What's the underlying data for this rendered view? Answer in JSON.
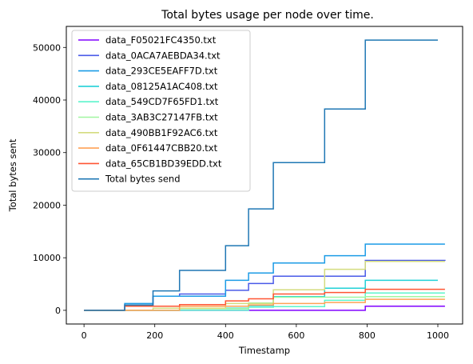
{
  "chart_data": {
    "type": "line",
    "title": "Total bytes usage per node over time.",
    "xlabel": "Timestamp",
    "ylabel": "Total bytes sent",
    "xlim": [
      -50,
      1070
    ],
    "ylim": [
      -2600,
      54000
    ],
    "xticks": [
      0,
      200,
      400,
      600,
      800,
      1000
    ],
    "yticks": [
      0,
      10000,
      20000,
      30000,
      40000,
      50000
    ],
    "grid": false,
    "legend_position": "top-left",
    "series": [
      {
        "name": "data_F05021FC4350.txt",
        "color": "#8000ff",
        "steps": [
          [
            0,
            0
          ],
          [
            795,
            800
          ],
          [
            1020,
            800
          ]
        ]
      },
      {
        "name": "data_0ACA7AEBDA34.txt",
        "color": "#4a5ae8",
        "steps": [
          [
            0,
            0
          ],
          [
            115,
            1000
          ],
          [
            195,
            2700
          ],
          [
            270,
            3100
          ],
          [
            400,
            3800
          ],
          [
            465,
            5100
          ],
          [
            535,
            6500
          ],
          [
            680,
            6500
          ],
          [
            795,
            9500
          ],
          [
            1020,
            9400
          ]
        ]
      },
      {
        "name": "data_293CE5EAFF7D.txt",
        "color": "#1c9ce6",
        "steps": [
          [
            0,
            0
          ],
          [
            115,
            1300
          ],
          [
            195,
            2700
          ],
          [
            270,
            2700
          ],
          [
            400,
            5700
          ],
          [
            465,
            7100
          ],
          [
            535,
            9000
          ],
          [
            680,
            10400
          ],
          [
            795,
            12600
          ],
          [
            1020,
            12600
          ]
        ]
      },
      {
        "name": "data_08125A1AC408.txt",
        "color": "#21d1d7",
        "steps": [
          [
            0,
            0
          ],
          [
            270,
            400
          ],
          [
            465,
            900
          ],
          [
            535,
            2600
          ],
          [
            680,
            4200
          ],
          [
            795,
            5700
          ],
          [
            1000,
            5700
          ]
        ]
      },
      {
        "name": "data_549CD7F65FD1.txt",
        "color": "#5cf4cc",
        "steps": [
          [
            0,
            0
          ],
          [
            465,
            600
          ],
          [
            535,
            700
          ],
          [
            680,
            1900
          ],
          [
            795,
            3300
          ],
          [
            1020,
            3300
          ]
        ]
      },
      {
        "name": "data_3AB3C27147FB.txt",
        "color": "#a0f6a0",
        "steps": [
          [
            0,
            0
          ],
          [
            270,
            300
          ],
          [
            465,
            1400
          ],
          [
            535,
            2500
          ],
          [
            680,
            2500
          ],
          [
            795,
            2600
          ],
          [
            1020,
            2600
          ]
        ]
      },
      {
        "name": "data_490BB1F92AC6.txt",
        "color": "#d4dc7f",
        "steps": [
          [
            0,
            0
          ],
          [
            195,
            400
          ],
          [
            400,
            1300
          ],
          [
            535,
            3900
          ],
          [
            680,
            7800
          ],
          [
            795,
            9300
          ],
          [
            1020,
            9300
          ]
        ]
      },
      {
        "name": "data_0F61447CBB20.txt",
        "color": "#ffa256",
        "steps": [
          [
            0,
            0
          ],
          [
            270,
            800
          ],
          [
            465,
            1000
          ],
          [
            535,
            1300
          ],
          [
            680,
            1500
          ],
          [
            795,
            2100
          ],
          [
            1020,
            2100
          ]
        ]
      },
      {
        "name": "data_65CB1BD39EDD.txt",
        "color": "#ff5533",
        "steps": [
          [
            0,
            0
          ],
          [
            115,
            800
          ],
          [
            270,
            1100
          ],
          [
            400,
            1800
          ],
          [
            465,
            2200
          ],
          [
            535,
            3100
          ],
          [
            680,
            3400
          ],
          [
            795,
            4000
          ],
          [
            1020,
            4000
          ]
        ]
      },
      {
        "name": "Total bytes send",
        "color": "#1f77b4",
        "steps": [
          [
            0,
            0
          ],
          [
            115,
            1000
          ],
          [
            195,
            3700
          ],
          [
            270,
            7600
          ],
          [
            400,
            12300
          ],
          [
            465,
            19300
          ],
          [
            535,
            28100
          ],
          [
            680,
            38300
          ],
          [
            795,
            51400
          ],
          [
            1000,
            51400
          ]
        ]
      }
    ]
  }
}
